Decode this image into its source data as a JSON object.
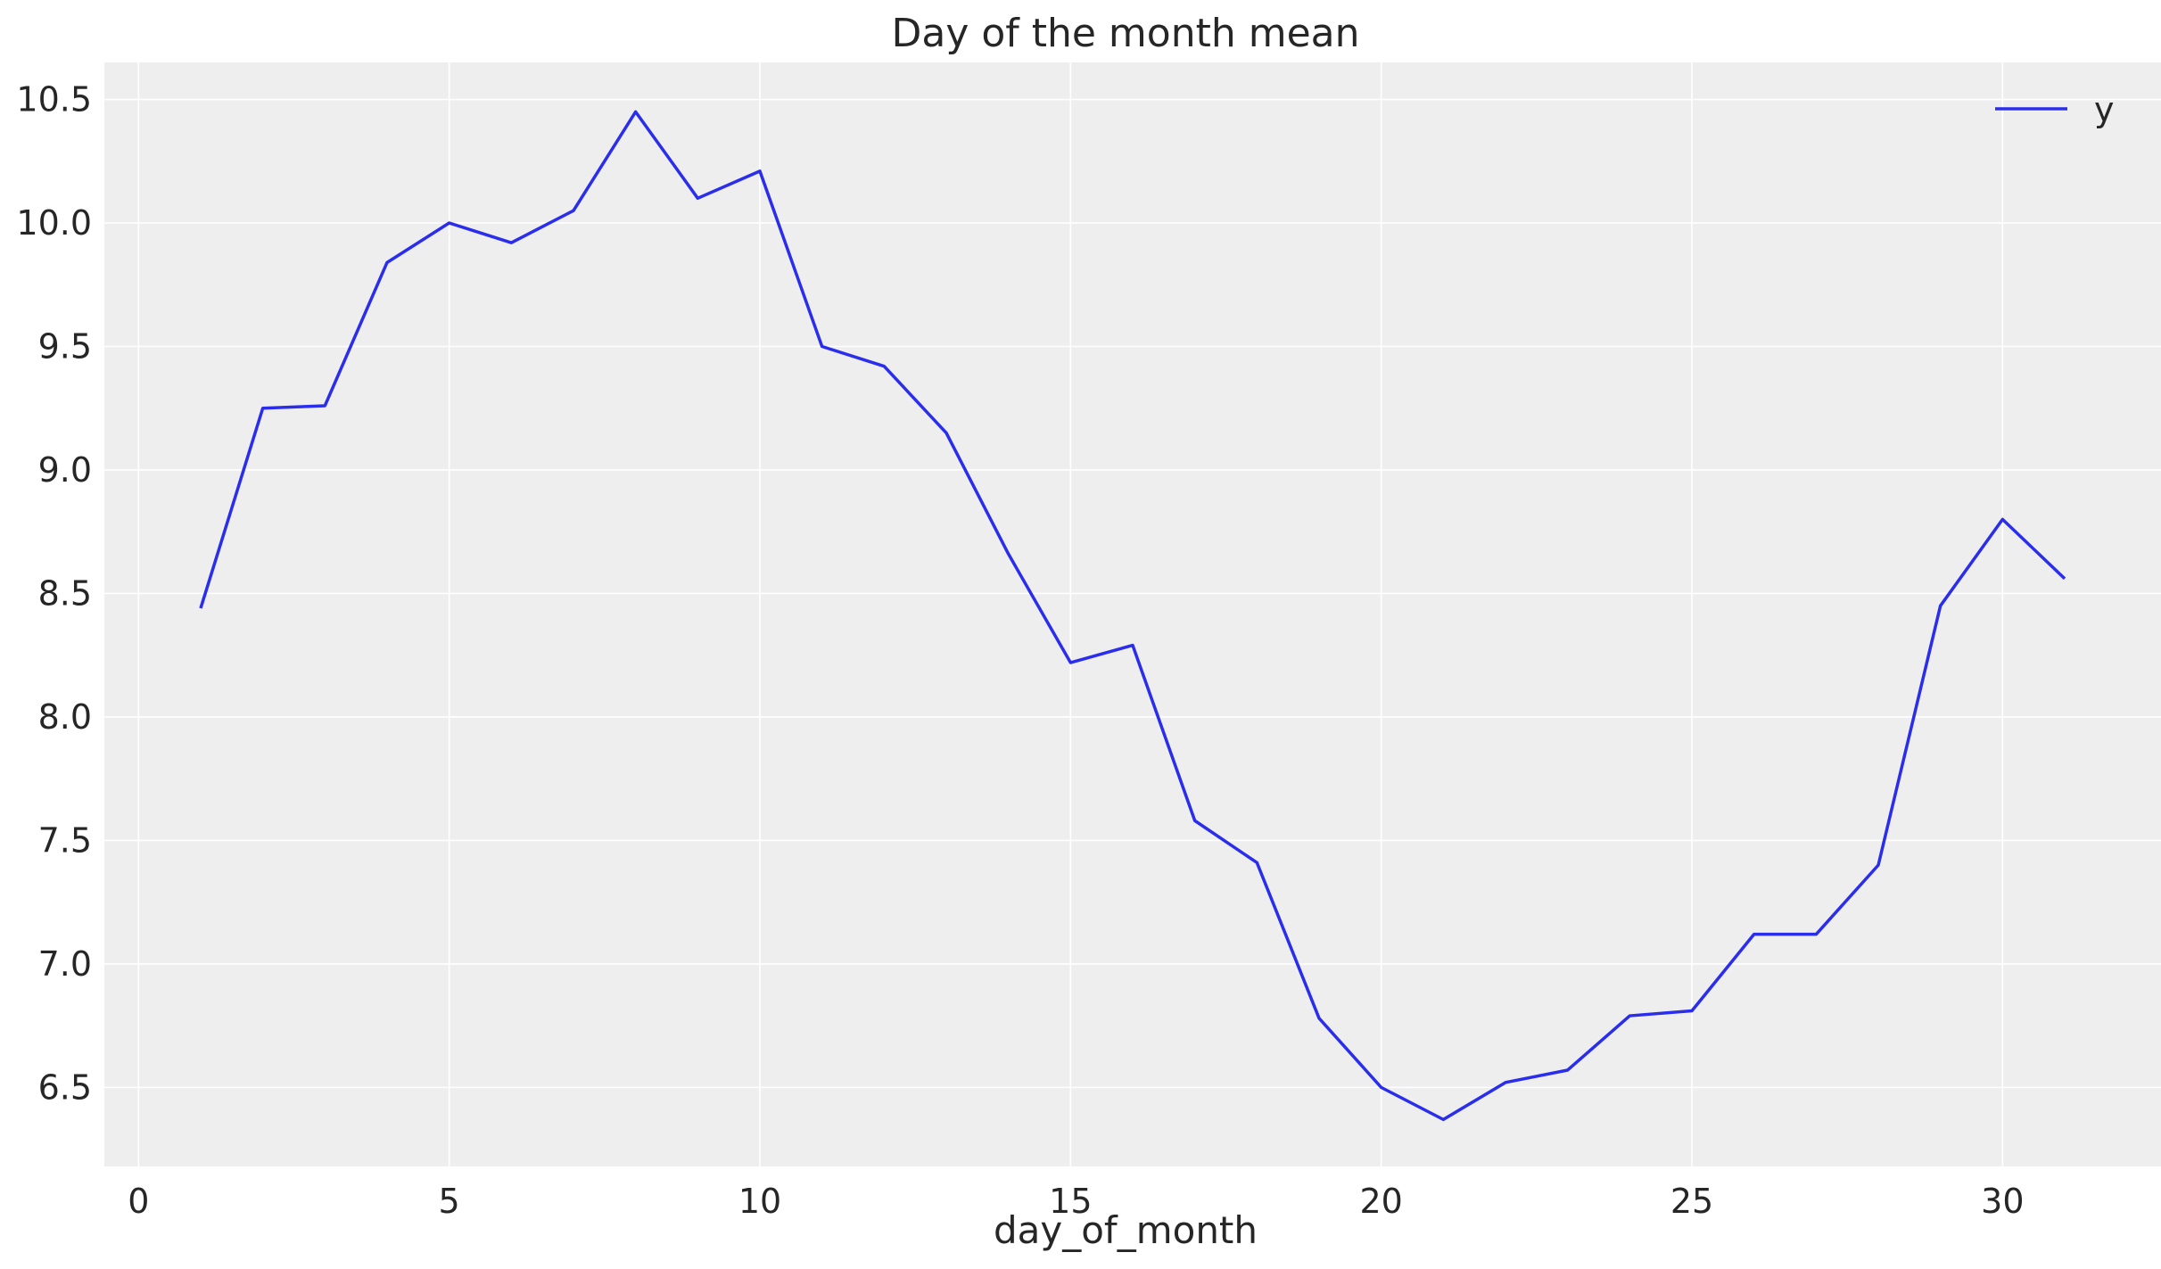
{
  "chart_data": {
    "type": "line",
    "title": "Day of the month mean",
    "xlabel": "day_of_month",
    "ylabel": "",
    "xlim": [
      -0.55,
      32.55
    ],
    "ylim": [
      6.18,
      10.65
    ],
    "xticks": [
      0,
      5,
      10,
      15,
      20,
      25,
      30
    ],
    "xtick_labels": [
      "0",
      "5",
      "10",
      "15",
      "20",
      "25",
      "30"
    ],
    "yticks": [
      6.5,
      7.0,
      7.5,
      8.0,
      8.5,
      9.0,
      9.5,
      10.0,
      10.5
    ],
    "ytick_labels": [
      "6.5",
      "7.0",
      "7.5",
      "8.0",
      "8.5",
      "9.0",
      "9.5",
      "10.0",
      "10.5"
    ],
    "grid": true,
    "legend_position": "top-right",
    "background_color": "#eeeeee",
    "grid_color": "#ffffff",
    "series": [
      {
        "name": "y",
        "color": "#2a2eec",
        "x": [
          1,
          2,
          3,
          4,
          5,
          6,
          7,
          8,
          9,
          10,
          11,
          12,
          13,
          14,
          15,
          16,
          17,
          18,
          19,
          20,
          21,
          22,
          23,
          24,
          25,
          26,
          27,
          28,
          29,
          30,
          31
        ],
        "values": [
          8.44,
          9.25,
          9.26,
          9.84,
          10.0,
          9.92,
          10.05,
          10.45,
          10.1,
          10.21,
          9.5,
          9.42,
          9.15,
          8.66,
          8.22,
          8.29,
          7.58,
          7.41,
          6.78,
          6.5,
          6.37,
          6.52,
          6.57,
          6.79,
          6.81,
          7.12,
          7.12,
          7.4,
          8.45,
          8.8,
          8.56
        ]
      }
    ]
  }
}
